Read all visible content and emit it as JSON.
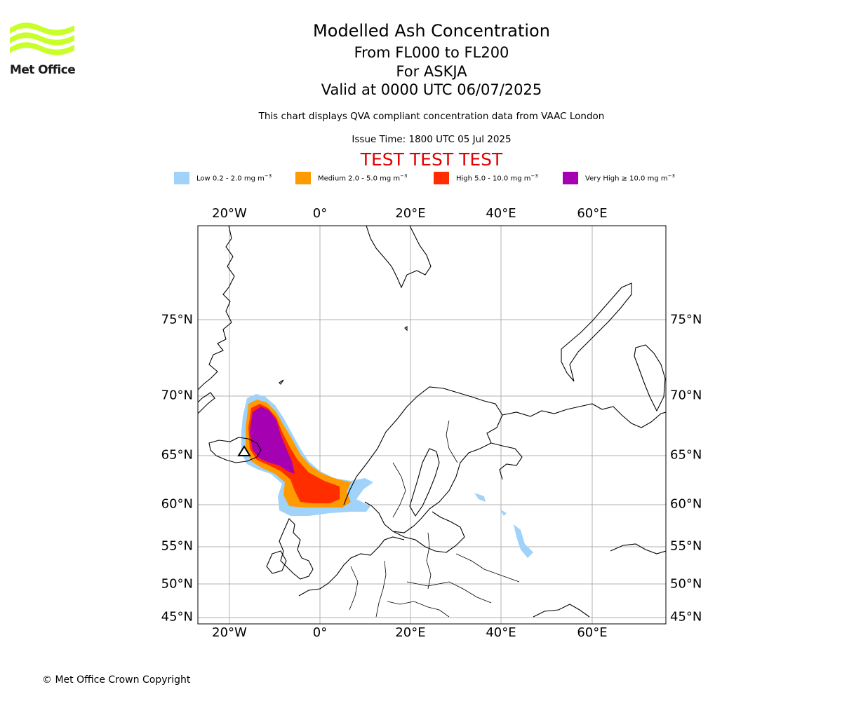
{
  "branding": {
    "logo_text": "Met Office",
    "logo_color": "#c8ff2a",
    "logo_icon": "met-office-waves-logo"
  },
  "header": {
    "title": "Modelled Ash Concentration",
    "level_range": "From FL000 to FL200",
    "volcano": "For ASKJA",
    "valid_time": "Valid at 0000 UTC 06/07/2025",
    "description": "This chart displays QVA compliant concentration data from VAAC London",
    "issue_time": "Issue Time: 1800 UTC 05 Jul 2025",
    "test_banner": "TEST TEST TEST",
    "test_banner_color": "#e00000"
  },
  "legend": [
    {
      "label": "Low 0.2 - 2.0 mg m",
      "unit_exp": "−3",
      "color": "#a0d2fa"
    },
    {
      "label": "Medium 2.0 - 5.0 mg m",
      "unit_exp": "−3",
      "color": "#ff9a00"
    },
    {
      "label": "High 5.0 - 10.0 mg m",
      "unit_exp": "−3",
      "color": "#ff2d00"
    },
    {
      "label": "Very High ≥ 10.0 mg m",
      "unit_exp": "−3",
      "color": "#a600b3"
    }
  ],
  "map": {
    "projection": "polar stereographic",
    "gridlines": true,
    "lon_labels": [
      "20°W",
      "0°",
      "20°E",
      "40°E",
      "60°E"
    ],
    "lat_labels": [
      "75°N",
      "70°N",
      "65°N",
      "60°N",
      "55°N",
      "50°N",
      "45°N"
    ],
    "volcano_marker": "triangle-icon"
  },
  "footer": {
    "copyright": "© Met Office Crown Copyright"
  }
}
